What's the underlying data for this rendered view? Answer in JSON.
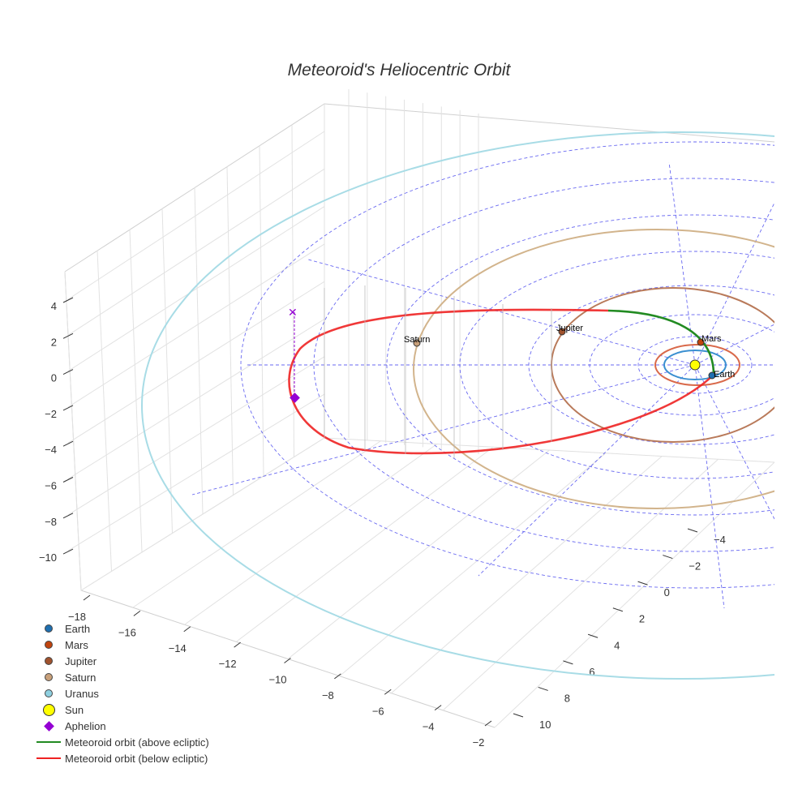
{
  "chart_data": {
    "type": "scatter3d",
    "title": "Meteoroid's Heliocentric Orbit",
    "x_ticks": [
      "−18",
      "−16",
      "−14",
      "−12",
      "−10",
      "−8",
      "−6",
      "−4",
      "−2"
    ],
    "y_ticks": [
      "−4",
      "−2",
      "0",
      "2",
      "4",
      "6",
      "8",
      "10"
    ],
    "z_ticks": [
      "4",
      "2",
      "0",
      "−2",
      "−4",
      "−6",
      "−8",
      "−10"
    ],
    "planets": [
      {
        "name": "Earth",
        "color": "#1f6fb0"
      },
      {
        "name": "Mars",
        "color": "#c1440e"
      },
      {
        "name": "Jupiter",
        "color": "#a0522d"
      },
      {
        "name": "Saturn",
        "color": "#c8a07a"
      },
      {
        "name": "Uranus",
        "color": "#8fd0e0"
      }
    ],
    "sun": {
      "name": "Sun",
      "color": "#ffff00"
    },
    "aphelion": {
      "name": "Aphelion",
      "color": "#9400d3"
    },
    "orbit_above": {
      "name": "Meteoroid orbit (above ecliptic)",
      "color": "#228b22"
    },
    "orbit_below": {
      "name": "Meteoroid orbit (below ecliptic)",
      "color": "#ee2222"
    },
    "legend": {
      "position": "bottom-left"
    }
  }
}
